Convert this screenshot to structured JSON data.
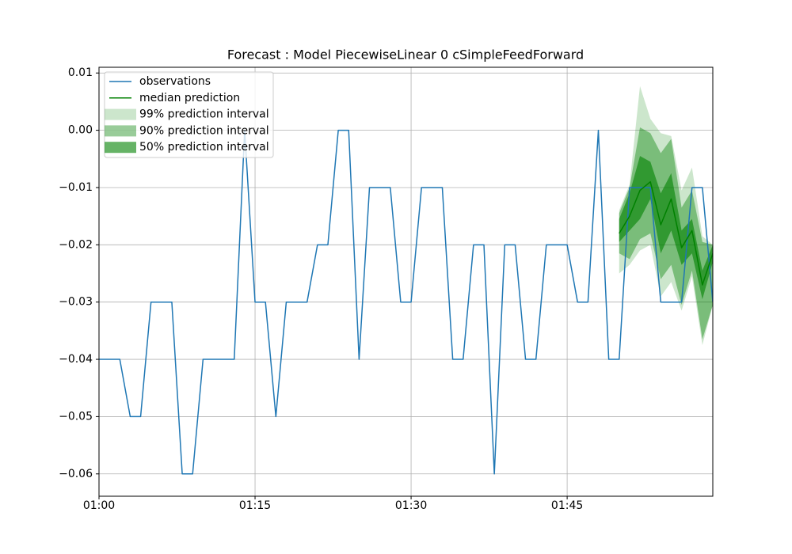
{
  "chart_data": {
    "type": "line",
    "title": "Forecast : Model PiecewiseLinear 0 cSimpleFeedForward",
    "x": [
      "01:00",
      "01:01",
      "01:02",
      "01:03",
      "01:04",
      "01:05",
      "01:06",
      "01:07",
      "01:08",
      "01:09",
      "01:10",
      "01:11",
      "01:12",
      "01:13",
      "01:14",
      "01:15",
      "01:16",
      "01:17",
      "01:18",
      "01:19",
      "01:20",
      "01:21",
      "01:22",
      "01:23",
      "01:24",
      "01:25",
      "01:26",
      "01:27",
      "01:28",
      "01:29",
      "01:30",
      "01:31",
      "01:32",
      "01:33",
      "01:34",
      "01:35",
      "01:36",
      "01:37",
      "01:38",
      "01:39",
      "01:40",
      "01:41",
      "01:42",
      "01:43",
      "01:44",
      "01:45",
      "01:46",
      "01:47",
      "01:48",
      "01:49",
      "01:50",
      "01:51",
      "01:52",
      "01:53",
      "01:54",
      "01:55",
      "01:56",
      "01:57",
      "01:58",
      "01:59"
    ],
    "xlim": [
      "01:00",
      "01:59"
    ],
    "xticks": [
      "01:00",
      "01:15",
      "01:30",
      "01:45"
    ],
    "ylim": [
      -0.0639,
      0.011
    ],
    "yticks": [
      0.01,
      {
        "value": 0,
        "label": "0.00"
      },
      {
        "value": -0.01,
        "label": "−0.01"
      },
      {
        "value": -0.02,
        "label": "−0.02"
      },
      {
        "value": -0.03,
        "label": "−0.03"
      },
      {
        "value": -0.04,
        "label": "−0.04"
      },
      {
        "value": -0.05,
        "label": "−0.05"
      },
      {
        "value": -0.06,
        "label": "−0.06"
      }
    ],
    "grid": true,
    "legend": "upper left",
    "series": [
      {
        "name": "observations",
        "kind": "line",
        "color": "#1f77b4",
        "values": [
          -0.04,
          -0.04,
          -0.04,
          -0.05,
          -0.05,
          -0.03,
          -0.03,
          -0.03,
          -0.06,
          -0.06,
          -0.04,
          -0.04,
          -0.04,
          -0.04,
          0,
          -0.03,
          -0.03,
          -0.05,
          -0.03,
          -0.03,
          -0.03,
          -0.02,
          -0.02,
          0,
          0,
          -0.04,
          -0.01,
          -0.01,
          -0.01,
          -0.03,
          -0.03,
          -0.01,
          -0.01,
          -0.01,
          -0.04,
          -0.04,
          -0.02,
          -0.02,
          -0.06,
          -0.02,
          -0.02,
          -0.04,
          -0.04,
          -0.02,
          -0.02,
          -0.02,
          -0.03,
          -0.03,
          0,
          -0.04,
          -0.04,
          -0.01,
          -0.01,
          -0.01,
          -0.03,
          -0.03,
          -0.03,
          -0.01,
          -0.01,
          -0.03
        ]
      },
      {
        "name": "median prediction",
        "kind": "line",
        "color": "#008000",
        "x": [
          "01:50",
          "01:51",
          "01:52",
          "01:53",
          "01:54",
          "01:55",
          "01:56",
          "01:57",
          "01:58",
          "01:59"
        ],
        "values": [
          -0.018,
          -0.015,
          -0.0105,
          -0.009,
          -0.0165,
          -0.012,
          -0.0205,
          -0.0175,
          -0.027,
          -0.0215
        ]
      },
      {
        "name": "99% prediction interval",
        "kind": "band",
        "color": "#008000",
        "alpha": 0.2,
        "x": [
          "01:50",
          "01:51",
          "01:52",
          "01:53",
          "01:54",
          "01:55",
          "01:56",
          "01:57",
          "01:58",
          "01:59"
        ],
        "lower": [
          -0.025,
          -0.0235,
          -0.021,
          -0.02,
          -0.029,
          -0.0265,
          -0.0315,
          -0.0255,
          -0.0375,
          -0.0305
        ],
        "upper": [
          -0.014,
          -0.0095,
          0.0077,
          0.002,
          -0.0005,
          -0.001,
          -0.0105,
          -0.0065,
          -0.0185,
          -0.02
        ]
      },
      {
        "name": "90% prediction interval",
        "kind": "band",
        "color": "#008000",
        "alpha": 0.4,
        "x": [
          "01:50",
          "01:51",
          "01:52",
          "01:53",
          "01:54",
          "01:55",
          "01:56",
          "01:57",
          "01:58",
          "01:59"
        ],
        "lower": [
          -0.0215,
          -0.0225,
          -0.019,
          -0.018,
          -0.026,
          -0.0235,
          -0.0305,
          -0.0245,
          -0.0365,
          -0.0305
        ],
        "upper": [
          -0.0145,
          -0.01,
          0.0005,
          -0.0005,
          -0.004,
          -0.0015,
          -0.0135,
          -0.0105,
          -0.0195,
          -0.02
        ]
      },
      {
        "name": "50% prediction interval",
        "kind": "band",
        "color": "#008000",
        "alpha": 0.6,
        "x": [
          "01:50",
          "01:51",
          "01:52",
          "01:53",
          "01:54",
          "01:55",
          "01:56",
          "01:57",
          "01:58",
          "01:59"
        ],
        "lower": [
          -0.0195,
          -0.0175,
          -0.0155,
          -0.012,
          -0.0215,
          -0.0175,
          -0.0235,
          -0.0215,
          -0.0295,
          -0.023
        ],
        "upper": [
          -0.0155,
          -0.011,
          -0.0045,
          -0.0055,
          -0.011,
          -0.0075,
          -0.0175,
          -0.0155,
          -0.0245,
          -0.02
        ]
      }
    ]
  }
}
